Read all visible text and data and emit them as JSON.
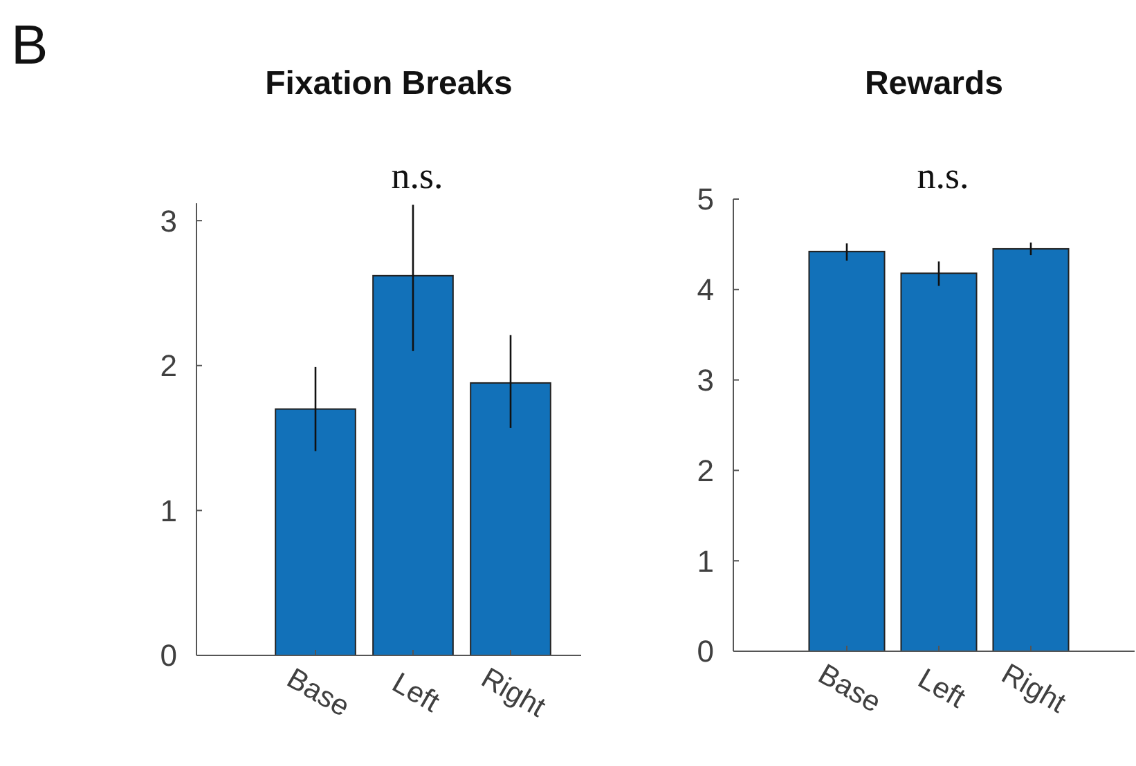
{
  "chart_data": [
    {
      "type": "bar",
      "title": "Fixation Breaks",
      "categories": [
        "Base",
        "Left",
        "Right"
      ],
      "values": [
        1.7,
        2.62,
        1.88
      ],
      "color": "#1271b9",
      "errors": [
        [
          1.41,
          1.99
        ],
        [
          2.1,
          3.11
        ],
        [
          1.57,
          2.21
        ]
      ],
      "ylim": [
        0,
        3.12
      ],
      "yticks": [
        0,
        1,
        2,
        3
      ],
      "annotations": [
        "n.s.",
        "B"
      ]
    },
    {
      "type": "bar",
      "title": "Rewards",
      "categories": [
        "Base",
        "Left",
        "Right"
      ],
      "values": [
        4.42,
        4.18,
        4.45
      ],
      "color": "#1271b9",
      "errors": [
        [
          4.32,
          4.51
        ],
        [
          4.04,
          4.31
        ],
        [
          4.38,
          4.52
        ]
      ],
      "ylim": [
        0,
        5
      ],
      "yticks": [
        0,
        1,
        2,
        3,
        4,
        5
      ],
      "annotations": [
        "n.s."
      ]
    }
  ]
}
